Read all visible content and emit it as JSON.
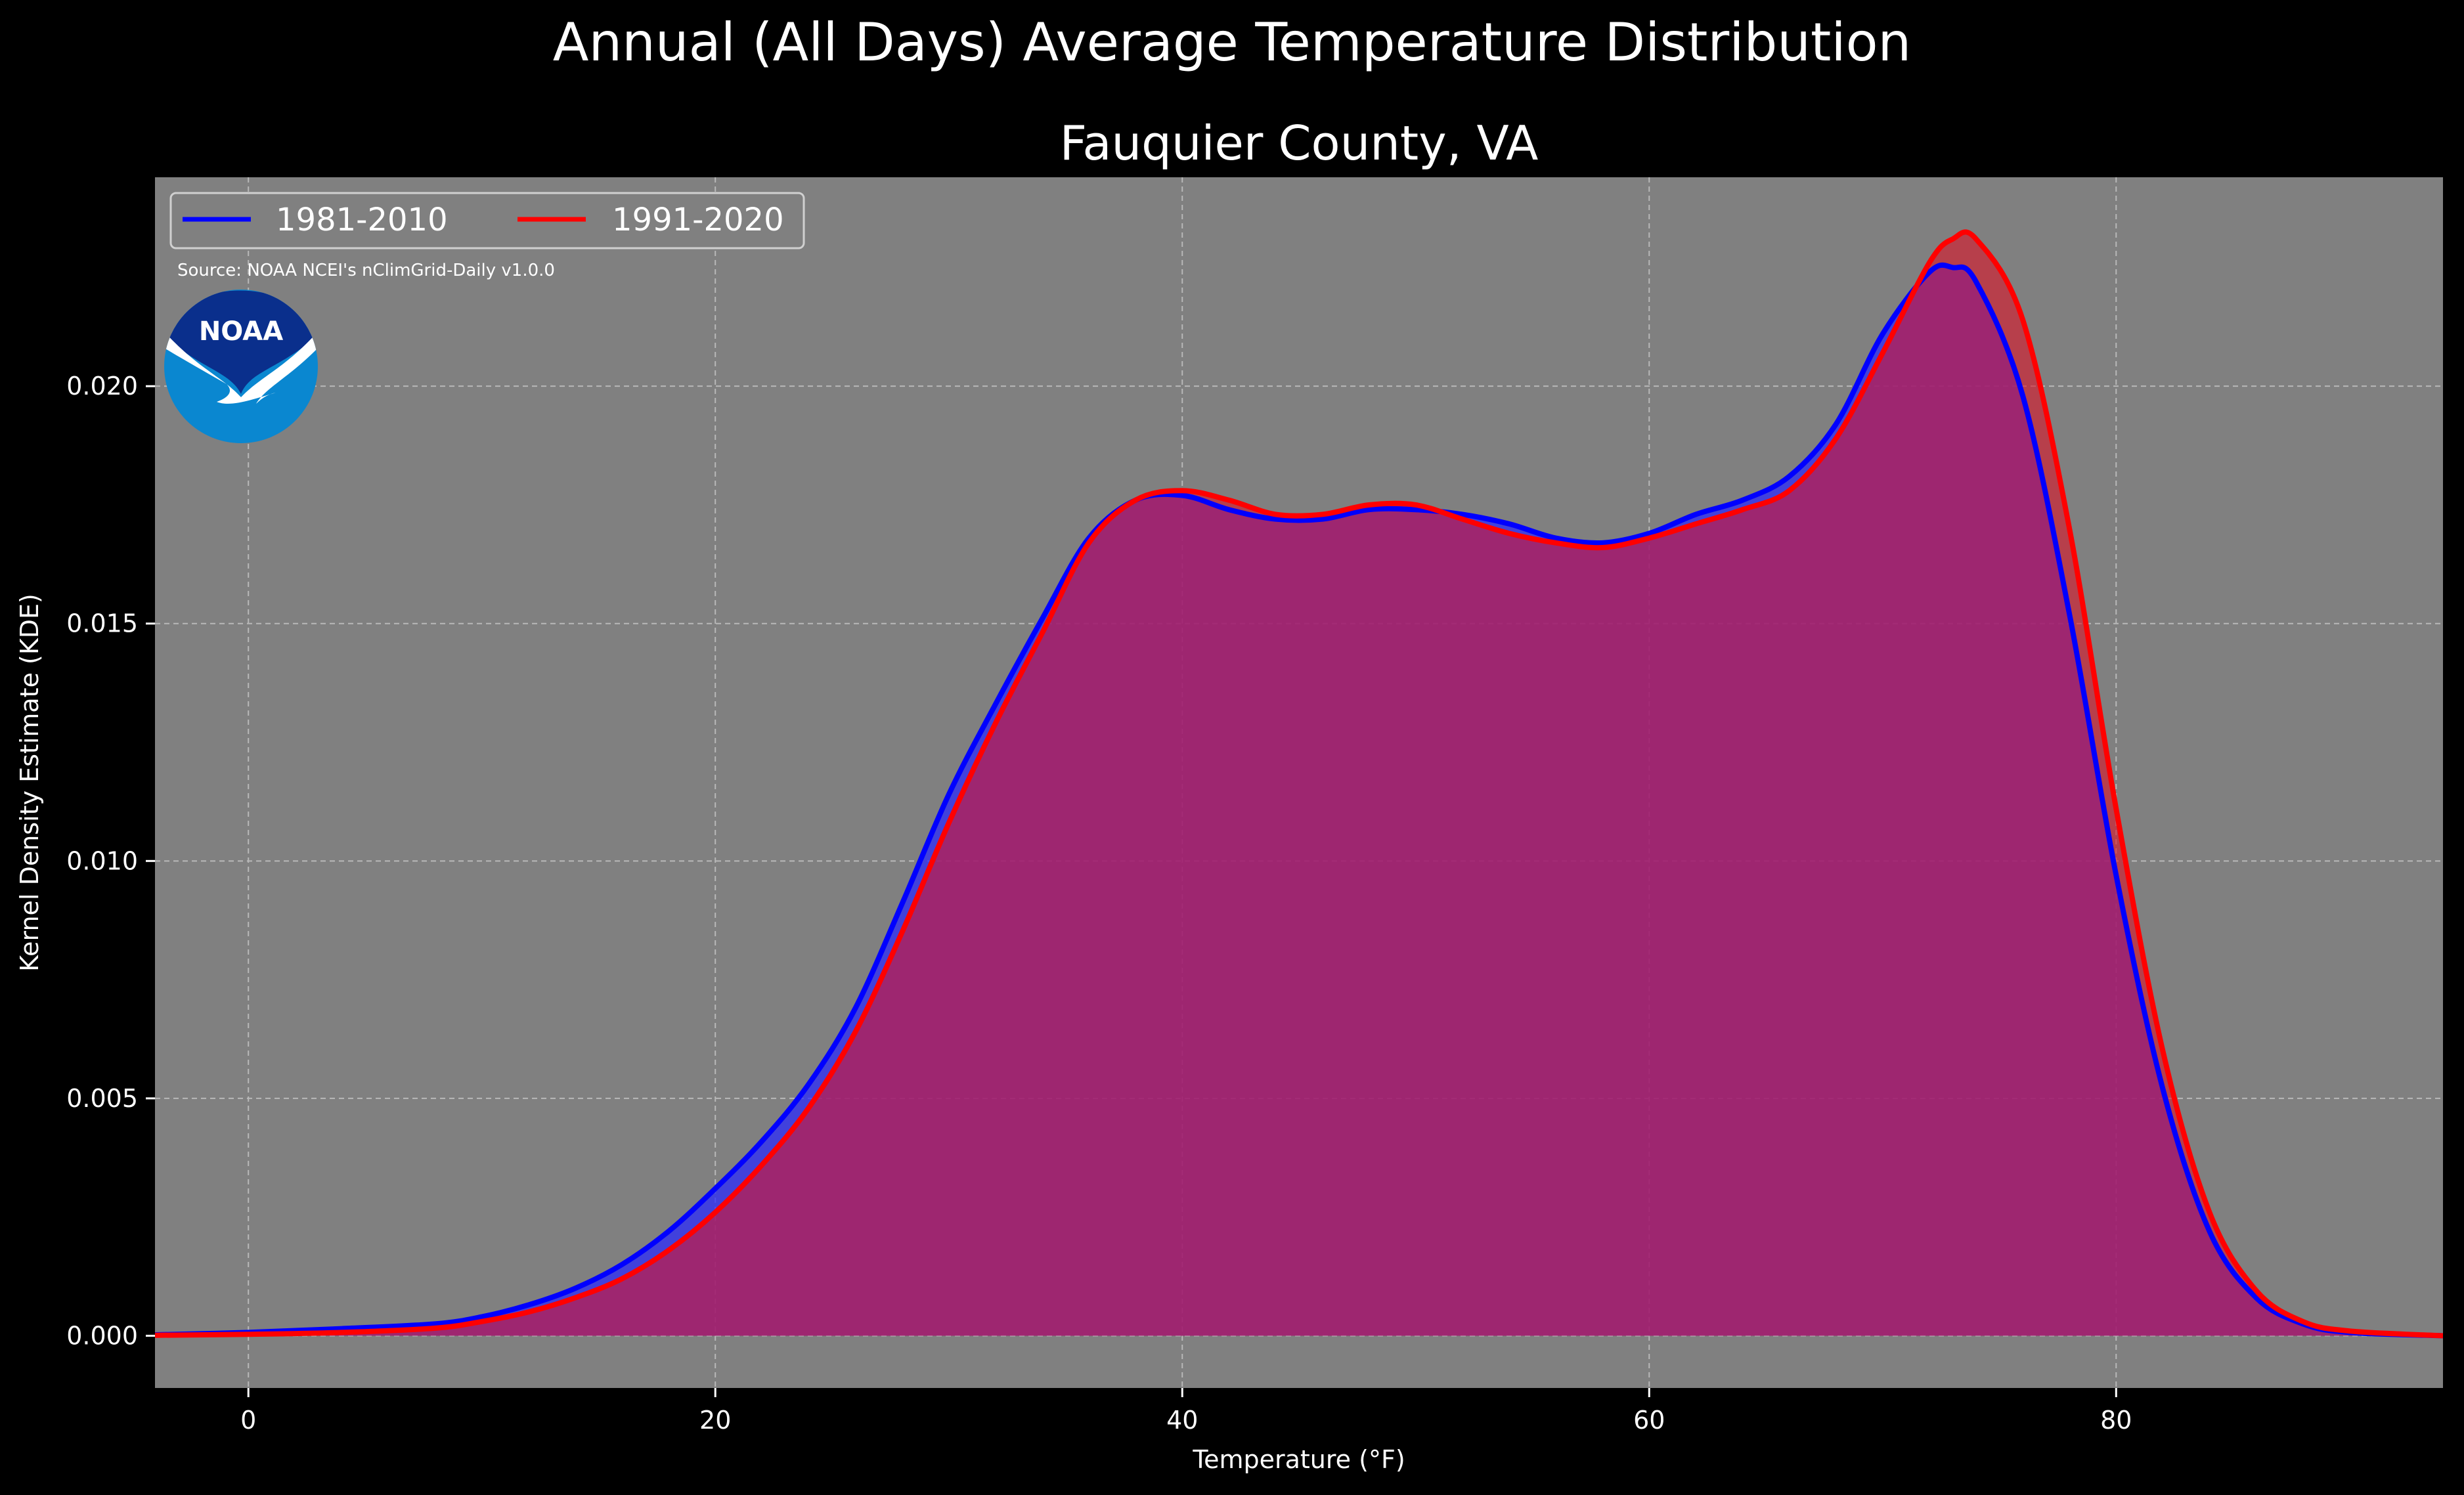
{
  "chart_data": {
    "type": "area",
    "suptitle": "Annual (All Days) Average Temperature Distribution",
    "title": "Fauquier County, VA",
    "xlabel": "Temperature (°F)",
    "ylabel": "Kernel Density Estimate (KDE)",
    "xlim": [
      -4,
      94
    ],
    "ylim": [
      -0.0011,
      0.0244
    ],
    "xticks": [
      "0",
      "20",
      "40",
      "60",
      "80"
    ],
    "xtick_values": [
      0,
      20,
      40,
      60,
      80
    ],
    "yticks": [
      "0.000",
      "0.005",
      "0.010",
      "0.015",
      "0.020"
    ],
    "ytick_values": [
      0,
      0.005,
      0.01,
      0.015,
      0.02
    ],
    "grid": true,
    "legend_position": "top-left",
    "source": "Source: NOAA NCEI's nClimGrid-Daily v1.0.0",
    "logo_text": "NOAA",
    "colors": {
      "background": "#000000",
      "plot_background": "#808080",
      "series_1981": "#0000ff",
      "series_1991": "#ff0000"
    },
    "series": [
      {
        "name": "1981-2010",
        "color": "#0000ff",
        "x": [
          -4,
          0,
          4,
          8,
          10,
          12,
          14,
          16,
          18,
          20,
          22,
          24,
          26,
          28,
          30,
          32,
          34,
          36,
          38,
          40,
          42,
          44,
          46,
          48,
          50,
          52,
          54,
          56,
          58,
          60,
          62,
          64,
          66,
          68,
          70,
          72,
          73,
          74,
          76,
          78,
          80,
          82,
          84,
          86,
          88,
          90,
          94
        ],
        "y": [
          2e-05,
          7e-05,
          0.00015,
          0.00025,
          0.0004,
          0.00065,
          0.001,
          0.0015,
          0.0022,
          0.0031,
          0.0041,
          0.0053,
          0.0069,
          0.0091,
          0.0114,
          0.0133,
          0.0151,
          0.0168,
          0.0176,
          0.0177,
          0.0174,
          0.0172,
          0.0172,
          0.0174,
          0.0174,
          0.0173,
          0.0171,
          0.0168,
          0.0167,
          0.0169,
          0.0173,
          0.0176,
          0.0181,
          0.0192,
          0.0211,
          0.0224,
          0.0225,
          0.0222,
          0.0198,
          0.0152,
          0.0097,
          0.0052,
          0.0022,
          0.0008,
          0.00025,
          7e-05,
          0.0
        ]
      },
      {
        "name": "1991-2020",
        "color": "#ff0000",
        "x": [
          -4,
          0,
          4,
          8,
          10,
          12,
          14,
          16,
          18,
          20,
          22,
          24,
          26,
          28,
          30,
          32,
          34,
          36,
          38,
          40,
          42,
          44,
          46,
          48,
          50,
          52,
          54,
          56,
          58,
          60,
          62,
          64,
          66,
          68,
          70,
          72,
          73,
          74,
          76,
          78,
          80,
          82,
          84,
          86,
          88,
          90,
          94
        ],
        "y": [
          1e-05,
          3e-05,
          7e-05,
          0.00016,
          0.0003,
          0.0005,
          0.0008,
          0.0012,
          0.0018,
          0.0026,
          0.0036,
          0.0048,
          0.0064,
          0.0085,
          0.0108,
          0.0129,
          0.0148,
          0.0167,
          0.0176,
          0.0178,
          0.0176,
          0.0173,
          0.0173,
          0.0175,
          0.0175,
          0.0172,
          0.0169,
          0.0167,
          0.0166,
          0.0168,
          0.0171,
          0.0174,
          0.0178,
          0.0189,
          0.0207,
          0.0226,
          0.0231,
          0.0231,
          0.0214,
          0.017,
          0.0111,
          0.006,
          0.0026,
          0.00095,
          0.0003,
          0.0001,
          0.0
        ]
      }
    ]
  }
}
